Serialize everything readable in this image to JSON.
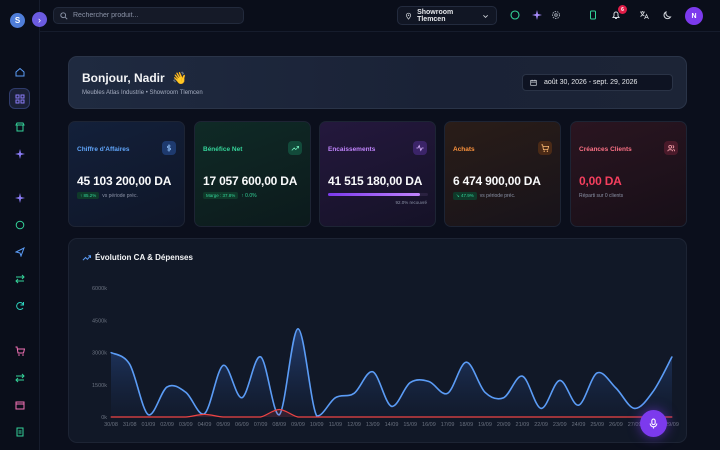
{
  "sidebar": {
    "logo_letter": "S",
    "collapse_icon": "chevron-right-icon",
    "icons": [
      "home-icon",
      "grid-icon",
      "store-icon",
      "sparkles-icon",
      "sparkles-icon",
      "chat-icon",
      "send-icon",
      "transfer-icon",
      "refresh-icon",
      "cart-icon",
      "transfer-icon",
      "box-icon",
      "receipt-icon"
    ],
    "active": "grid-icon"
  },
  "topbar": {
    "search_placeholder": "Rechercher produit...",
    "showroom": "Showroom Tlemcen",
    "notification_count": "6",
    "avatar_initial": "N"
  },
  "greeting": {
    "title": "Bonjour, Nadir",
    "emoji": "👋",
    "subtitle": "Meubles Atlas Industrie • Showroom Tlemcen",
    "date_range": "août 30, 2026 - sept. 29, 2026"
  },
  "kpis": [
    {
      "title": "Chiffre d'Affaires",
      "value": "45 103 200,00 DA",
      "badge": "↑ 85.2%",
      "note": "vs période préc.",
      "color": "#60a5fa",
      "icon": "dollar-icon"
    },
    {
      "title": "Bénéfice Net",
      "value": "17 057 600,00 DA",
      "badge": "Marge : 37.8%",
      "note": "↑ 0.0%",
      "color": "#34d399",
      "icon": "trending-up-icon"
    },
    {
      "title": "Encaissements",
      "value": "41 515 180,00 DA",
      "progress": 0.92,
      "note": "92.0% recouvré",
      "color": "#c084fc",
      "icon": "activity-icon"
    },
    {
      "title": "Achats",
      "value": "6 474 900,00 DA",
      "badge": "↘ 47.9%",
      "note": "vs période préc.",
      "color": "#fb923c",
      "icon": "cart-icon"
    },
    {
      "title": "Créances Clients",
      "value": "0,00 DA",
      "note": "Réparti sur 0 clients",
      "color": "#f43f5e",
      "icon": "users-icon"
    }
  ],
  "colors": {
    "accent": "#7c3aed",
    "revenue_line": "#5b9cf6",
    "expense_line": "#ef4444"
  },
  "chart_data": {
    "type": "area",
    "title": "Évolution CA & Dépenses",
    "categories": [
      "30/08",
      "31/08",
      "01/09",
      "02/09",
      "03/09",
      "04/09",
      "05/09",
      "06/09",
      "07/09",
      "08/09",
      "09/09",
      "10/09",
      "11/09",
      "12/09",
      "13/09",
      "14/09",
      "15/09",
      "16/09",
      "17/09",
      "18/09",
      "19/09",
      "20/09",
      "21/09",
      "22/09",
      "23/09",
      "24/09",
      "25/09",
      "26/09",
      "27/09",
      "28/09",
      "29/09"
    ],
    "ytick_labels": [
      "0k",
      "1500k",
      "3000k",
      "4500k",
      "6000k"
    ],
    "ylim": [
      0,
      6000
    ],
    "grid": false,
    "series": [
      {
        "values": [
          3000,
          2450,
          100,
          1400,
          1150,
          150,
          2400,
          900,
          2800,
          100,
          4100,
          50,
          900,
          1100,
          2100,
          500,
          1600,
          1650,
          1100,
          2550,
          1150,
          900,
          1900,
          400,
          1700,
          550,
          2050,
          1350,
          400,
          1200,
          2800
        ]
      },
      {
        "values": [
          0,
          0,
          0,
          0,
          0,
          120,
          0,
          0,
          0,
          350,
          0,
          0,
          0,
          0,
          0,
          0,
          0,
          0,
          0,
          0,
          0,
          0,
          0,
          0,
          0,
          0,
          0,
          0,
          0,
          0,
          0
        ]
      }
    ]
  }
}
